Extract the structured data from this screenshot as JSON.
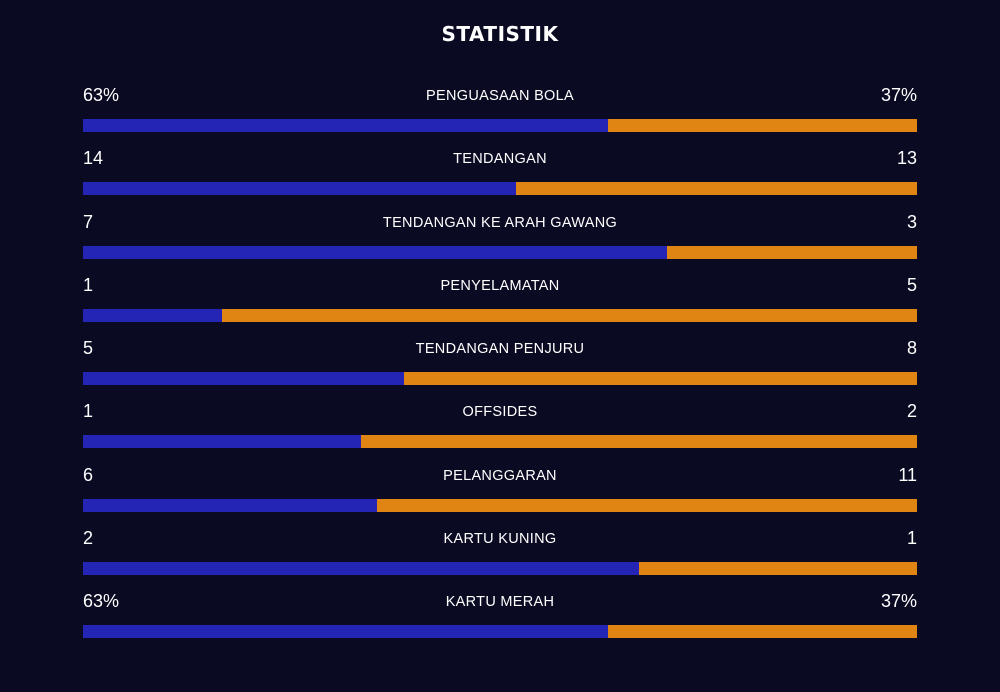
{
  "title": "STATISTIK",
  "colors": {
    "home": "#2525b5",
    "away": "#e08414",
    "background": "#0b0a23"
  },
  "stats": [
    {
      "label": "PENGUASAAN BOLA",
      "left": "63%",
      "right": "37%",
      "left_share": 0.63
    },
    {
      "label": "TENDANGAN",
      "left": "14",
      "right": "13",
      "left_share": 0.519
    },
    {
      "label": "TENDANGAN KE ARAH GAWANG",
      "left": "7",
      "right": "3",
      "left_share": 0.7
    },
    {
      "label": "PENYELAMATAN",
      "left": "1",
      "right": "5",
      "left_share": 0.167
    },
    {
      "label": "TENDANGAN PENJURU",
      "left": "5",
      "right": "8",
      "left_share": 0.385
    },
    {
      "label": "OFFSIDES",
      "left": "1",
      "right": "2",
      "left_share": 0.333
    },
    {
      "label": "PELANGGARAN",
      "left": "6",
      "right": "11",
      "left_share": 0.353
    },
    {
      "label": "KARTU KUNING",
      "left": "2",
      "right": "1",
      "left_share": 0.667
    },
    {
      "label": "KARTU MERAH",
      "left": "63%",
      "right": "37%",
      "left_share": 0.63
    }
  ]
}
